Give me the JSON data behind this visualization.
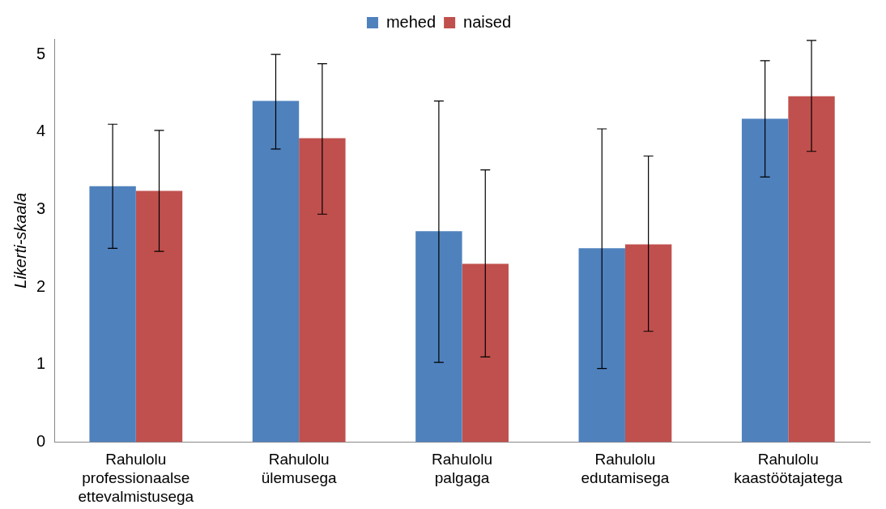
{
  "chart_data": {
    "type": "bar",
    "ylabel": "Likerti-skaala",
    "categories": [
      "Rahulolu professionaalse ettevalmistusega",
      "Rahulolu ülemusega",
      "Rahulolu palgaga",
      "Rahulolu edutamisega",
      "Rahulolu kaastöötajatega"
    ],
    "series": [
      {
        "name": "mehed",
        "color": "#4f81bd",
        "values": [
          3.3,
          4.4,
          2.72,
          2.5,
          4.17
        ],
        "errors": [
          [
            2.5,
            4.1
          ],
          [
            3.78,
            5.0
          ],
          [
            1.03,
            4.4
          ],
          [
            0.95,
            4.04
          ],
          [
            3.42,
            4.92
          ]
        ]
      },
      {
        "name": "naised",
        "color": "#c0504d",
        "values": [
          3.24,
          3.92,
          2.3,
          2.55,
          4.46
        ],
        "errors": [
          [
            2.46,
            4.02
          ],
          [
            2.94,
            4.88
          ],
          [
            1.1,
            3.51
          ],
          [
            1.43,
            3.69
          ],
          [
            3.75,
            5.18
          ]
        ]
      }
    ],
    "ylim": [
      0,
      5.2
    ],
    "yticks": [
      0,
      1,
      2,
      3,
      4,
      5
    ],
    "grid": false,
    "legend": "top"
  }
}
